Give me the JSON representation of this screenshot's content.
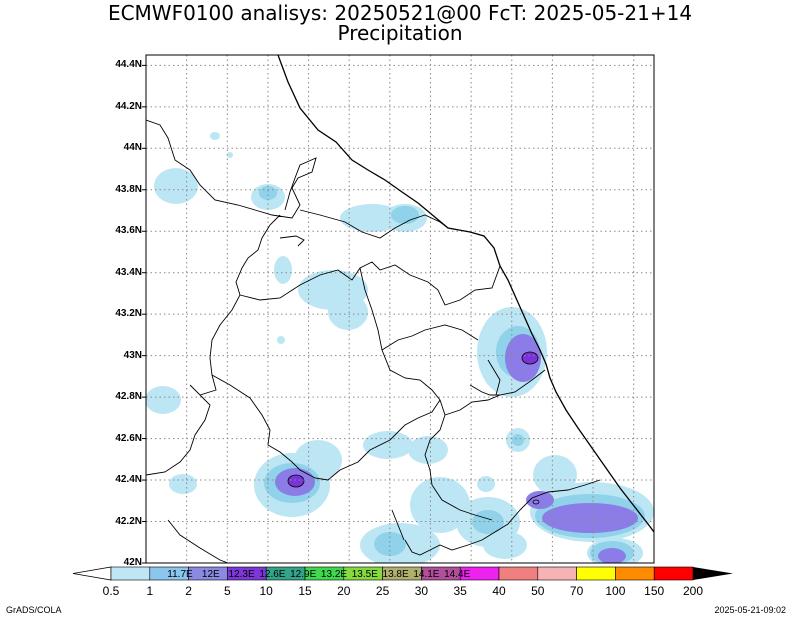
{
  "title": {
    "line1": "ECMWF0100 analisys: 20250521@00 FcT: 2025-05-21+14",
    "line2": "Precipitation"
  },
  "map": {
    "lat_labels": [
      "44.4N",
      "44.2N",
      "44N",
      "43.8N",
      "43.6N",
      "43.4N",
      "43.2N",
      "43N",
      "42.8N",
      "42.6N",
      "42.4N",
      "42.2N",
      "42N"
    ],
    "lat_values": [
      44.4,
      44.2,
      44.0,
      43.8,
      43.6,
      43.4,
      43.2,
      43.0,
      42.8,
      42.6,
      42.4,
      42.2,
      42.0
    ],
    "lat_range": [
      42.0,
      44.45
    ],
    "grid": "dotted",
    "colors": {
      "light_blue": "#bde6f4",
      "mid_blue": "#89cfe8",
      "blue": "#66b3e0",
      "violet": "#8c7ce8",
      "purple": "#7a33d9",
      "border": "#000000"
    }
  },
  "colorbar": {
    "labels": [
      "0.5",
      "1",
      "2",
      "5",
      "10",
      "15",
      "20",
      "25",
      "30",
      "35",
      "40",
      "50",
      "70",
      "100",
      "150",
      "200"
    ],
    "colors": [
      "#bfe6f5",
      "#8ac6ee",
      "#8a8ae0",
      "#7d37d8",
      "#33a38a",
      "#3fd94d",
      "#86d93f",
      "#b0b06e",
      "#b0509a",
      "#ee22ee",
      "#f08080",
      "#f5b3b3",
      "#ffff00",
      "#ff8c00",
      "#ff0000",
      "#8b0000"
    ],
    "inner_labels": [
      "11.7E",
      "12E",
      "12.3E",
      "12.6E",
      "12.9E",
      "13.2E",
      "13.5E",
      "13.8E",
      "14.1E",
      "14.4E"
    ]
  },
  "footer": {
    "left": "GrADS/COLA",
    "right": "2025-05-21-09:02"
  }
}
